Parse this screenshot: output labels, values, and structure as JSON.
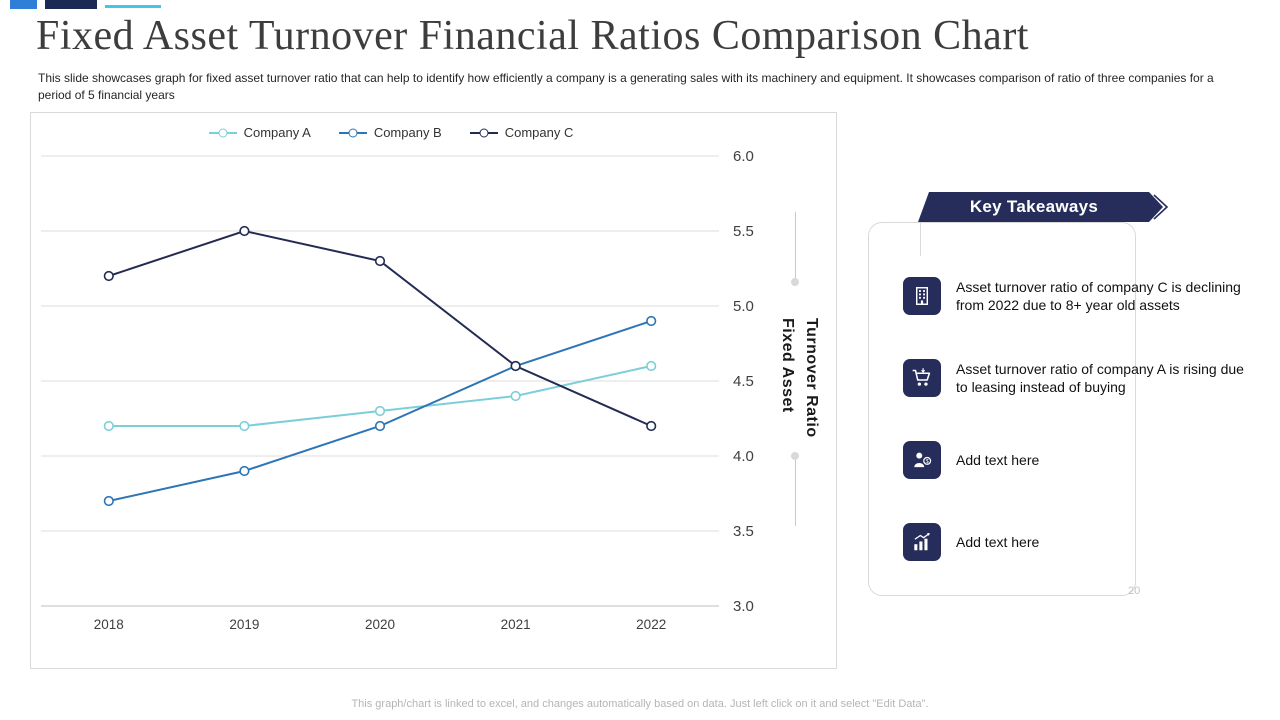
{
  "slide": {
    "title": "Fixed Asset Turnover Financial Ratios Comparison Chart",
    "subtitle": "This slide showcases graph for fixed asset turnover ratio that can help to identify how efficiently a company is a generating sales with its machinery and equipment. It showcases comparison of ratio of three companies for a period of 5 financial years",
    "footer": "This graph/chart is linked to excel, and changes automatically based on data. Just left click on it and select \"Edit Data\".",
    "slide_number": "20"
  },
  "chart_data": {
    "type": "line",
    "x": [
      "2018",
      "2019",
      "2020",
      "2021",
      "2022"
    ],
    "series": [
      {
        "name": "Company A",
        "color": "#7ccfd9",
        "values": [
          4.2,
          4.2,
          4.3,
          4.4,
          4.6
        ]
      },
      {
        "name": "Company B",
        "color": "#2e75b6",
        "values": [
          3.7,
          3.9,
          4.2,
          4.6,
          4.9
        ]
      },
      {
        "name": "Company C",
        "color": "#232b55",
        "values": [
          5.2,
          5.5,
          5.3,
          4.6,
          4.2
        ]
      }
    ],
    "ylabel": "Fixed Asset Turnover Ratio",
    "ylabel_display": "Fixed Asset\nTurnover Ratio",
    "ylim": [
      3.0,
      6.0
    ],
    "ytick_step": 0.5,
    "yticks": [
      "6.0",
      "5.5",
      "5.0",
      "4.5",
      "4.0",
      "3.5",
      "3.0"
    ],
    "legend_position": "top",
    "grid": true,
    "marker": "open-circle"
  },
  "takeaways": {
    "banner_label": "Key Takeaways",
    "banner_color": "#262d5b",
    "items": [
      {
        "icon": "building-icon",
        "text": "Asset turnover ratio of company C is declining from 2022 due to 8+ year old assets"
      },
      {
        "icon": "cart-icon",
        "text": "Asset turnover ratio of company A is rising due to leasing instead of buying"
      },
      {
        "icon": "people-money-icon",
        "text": "Add text here"
      },
      {
        "icon": "bar-chart-icon",
        "text": "Add text here"
      }
    ]
  },
  "accent_colors": {
    "bar1": "#2f7ed8",
    "bar2": "#1b2a55",
    "bar3": "#3ec9ea"
  }
}
